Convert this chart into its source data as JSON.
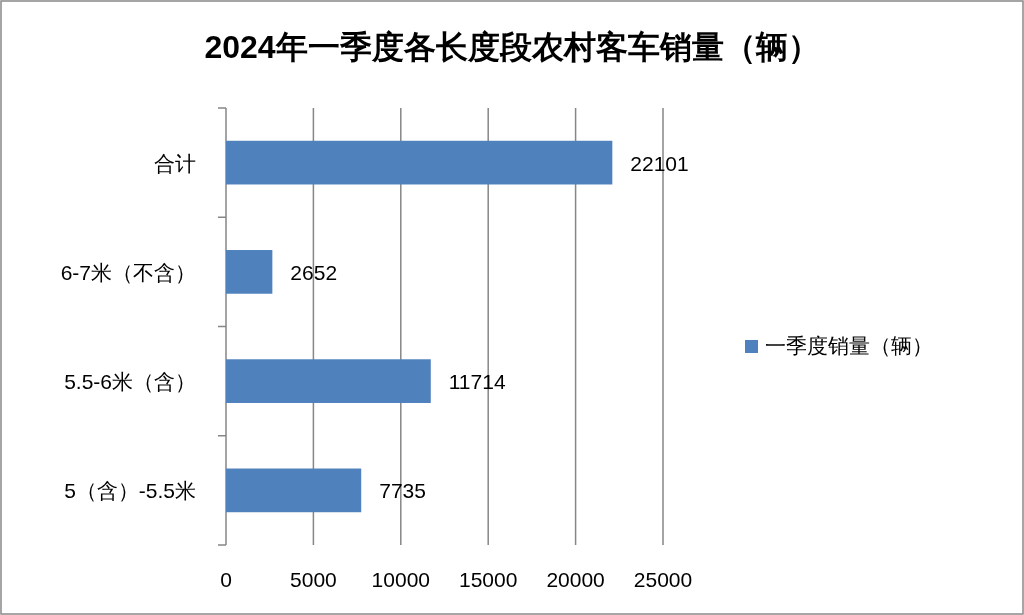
{
  "chart_data": {
    "type": "bar",
    "orientation": "horizontal",
    "title": "2024年一季度各长度段农村客车销量（辆）",
    "categories": [
      "合计",
      "6-7米（不含）",
      "5.5-6米（含）",
      "5（含）-5.5米"
    ],
    "series": [
      {
        "name": "一季度销量（辆）",
        "color": "#4f81bd",
        "values": [
          22101,
          2652,
          11714,
          7735
        ]
      }
    ],
    "xlim": [
      0,
      25000
    ],
    "xticks": [
      0,
      5000,
      10000,
      15000,
      20000,
      25000
    ],
    "grid": "x",
    "legend": "right",
    "data_labels": true
  }
}
